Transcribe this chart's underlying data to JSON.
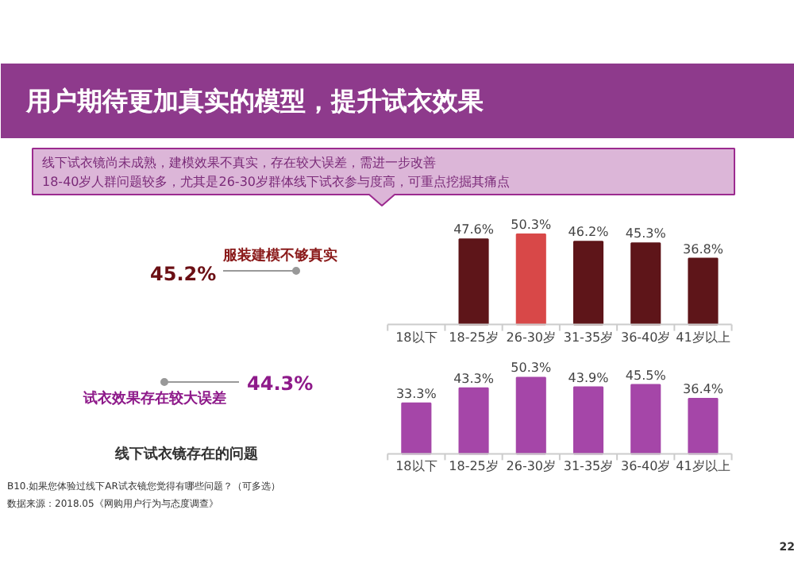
{
  "chart_data": [
    {
      "type": "other",
      "title": "用户期待更加真实的模型，提升试衣效果",
      "annotations": [
        "线下试衣镜尚未成熟，建模效果不真实，存在较大误差，需进一步改善",
        "18-40岁人群问题较多，尤其是26-30岁群体线下试衣参与度高，可重点挖掘其痛点",
        "服装建模不够真实",
        "45.2%",
        "试衣效果存在较大误差",
        "44.3%",
        "线下试衣镜存在的问题",
        "B10.如果您体验过线下AR试衣镜您觉得有哪些问题？（可多选）",
        "数据来源：2018.05《网购用户行为与态度调查》",
        "22"
      ]
    },
    {
      "type": "bar",
      "categories": [
        "18以下",
        "18-25岁",
        "26-30岁",
        "31-35岁",
        "36-40岁",
        "41岁以上"
      ],
      "values": [
        null,
        47.6,
        50.3,
        46.2,
        45.3,
        36.8
      ],
      "colors": [
        "#5e1519",
        "#5e1519",
        "#d84848",
        "#5e1519",
        "#5e1519",
        "#5e1519"
      ],
      "value_labels": [
        null,
        "47.6%",
        "50.3%",
        "46.2%",
        "45.3%",
        "36.8%"
      ]
    },
    {
      "type": "bar",
      "categories": [
        "18以下",
        "18-25岁",
        "26-30岁",
        "31-35岁",
        "36-40岁",
        "41岁以上"
      ],
      "values": [
        33.3,
        43.3,
        50.3,
        43.9,
        45.5,
        36.4
      ],
      "colors": [
        "#a546a8",
        "#a546a8",
        "#a546a8",
        "#a546a8",
        "#a546a8",
        "#a546a8"
      ],
      "value_labels": [
        "33.3%",
        "43.3%",
        "50.3%",
        "43.9%",
        "45.5%",
        "36.4%"
      ]
    }
  ]
}
